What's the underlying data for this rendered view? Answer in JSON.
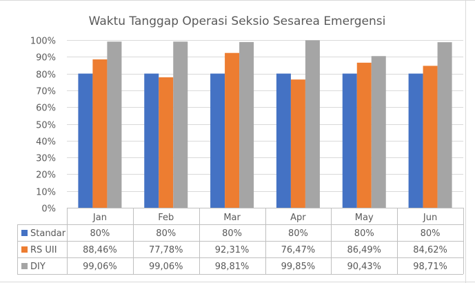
{
  "chart_data": {
    "type": "bar",
    "title": "Waktu Tanggap Operasi Seksio Sesarea Emergensi",
    "categories": [
      "Jan",
      "Feb",
      "Mar",
      "Apr",
      "May",
      "Jun"
    ],
    "series": [
      {
        "name": "Standar",
        "color": "#4472C4",
        "values": [
          80,
          80,
          80,
          80,
          80,
          80
        ],
        "labels": [
          "80%",
          "80%",
          "80%",
          "80%",
          "80%",
          "80%"
        ]
      },
      {
        "name": "RS UII",
        "color": "#ED7D31",
        "values": [
          88.46,
          77.78,
          92.31,
          76.47,
          86.49,
          84.62
        ],
        "labels": [
          "88,46%",
          "77,78%",
          "92,31%",
          "76,47%",
          "86,49%",
          "84,62%"
        ]
      },
      {
        "name": "DIY",
        "color": "#A5A5A5",
        "values": [
          99.06,
          99.06,
          98.81,
          99.85,
          90.43,
          98.71
        ],
        "labels": [
          "99,06%",
          "99,06%",
          "98,81%",
          "99,85%",
          "90,43%",
          "98,71%"
        ]
      }
    ],
    "ylim": [
      0,
      100
    ],
    "yticks": [
      "0%",
      "10%",
      "20%",
      "30%",
      "40%",
      "50%",
      "60%",
      "70%",
      "80%",
      "90%",
      "100%"
    ],
    "xlabel": "",
    "ylabel": "",
    "grid": true,
    "legend": "data-table"
  }
}
